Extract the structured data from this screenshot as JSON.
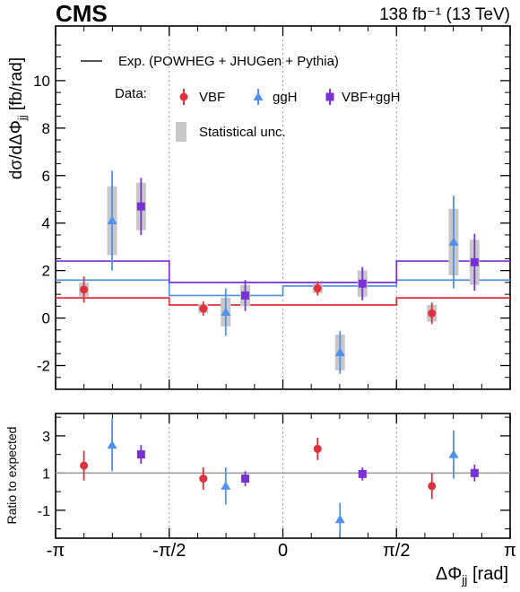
{
  "header": {
    "experiment": "CMS",
    "luminosity": "138 fb⁻¹ (13 TeV)"
  },
  "legend": {
    "expected": "Exp. (POWHEG + JHUGen + Pythia)",
    "data_prefix": "Data:",
    "vbf": "VBF",
    "ggh": "ggH",
    "vbf_ggh": "VBF+ggH",
    "stat": "Statistical unc."
  },
  "colors": {
    "VBF": "#e0303a",
    "ggH": "#4f92ee",
    "VBF+ggH": "#7a2fd8",
    "stat_band": "#c8c8c8",
    "reference": "#999999"
  },
  "chart_data": [
    {
      "type": "scatter",
      "panel": "main",
      "ylabel": "dσ/dΔΦjj [fb/rad]",
      "ylim": [
        -3,
        12.3
      ],
      "yticks": [
        -2,
        0,
        2,
        4,
        6,
        8,
        10
      ],
      "ytick_labels": [
        "-2",
        "0",
        "2",
        "4",
        "6",
        "8",
        "10"
      ],
      "x_bins": [
        [
          "-π",
          "-π/2"
        ],
        [
          "-π/2",
          "0"
        ],
        [
          "0",
          "π/2"
        ],
        [
          "π/2",
          "π"
        ]
      ],
      "expected": {
        "VBF": [
          0.85,
          0.55,
          0.55,
          0.85
        ],
        "ggH": [
          1.6,
          0.95,
          1.35,
          1.6
        ],
        "VBF+ggH": [
          2.4,
          1.5,
          1.5,
          2.4
        ]
      },
      "series": [
        {
          "name": "VBF",
          "marker": "circle",
          "points": [
            {
              "x": -2.75,
              "y": 1.2,
              "err": 0.55,
              "stat": 0.3
            },
            {
              "x": -1.1,
              "y": 0.4,
              "err": 0.3,
              "stat": 0.2
            },
            {
              "x": 0.48,
              "y": 1.25,
              "err": 0.3,
              "stat": 0.2
            },
            {
              "x": 2.06,
              "y": 0.2,
              "err": 0.45,
              "stat": 0.35
            }
          ]
        },
        {
          "name": "ggH",
          "marker": "triangle",
          "points": [
            {
              "x": -2.36,
              "y": 4.1,
              "err": 2.1,
              "stat": 1.45
            },
            {
              "x": -0.79,
              "y": 0.25,
              "err": 1.0,
              "stat": 0.6
            },
            {
              "x": 0.79,
              "y": -1.45,
              "err": 0.9,
              "stat": 0.75
            },
            {
              "x": 2.36,
              "y": 3.2,
              "err": 1.95,
              "stat": 1.4
            }
          ]
        },
        {
          "name": "VBF+ggH",
          "marker": "square",
          "points": [
            {
              "x": -1.96,
              "y": 4.7,
              "err": 1.2,
              "stat": 1.0
            },
            {
              "x": -0.52,
              "y": 0.95,
              "err": 0.65,
              "stat": 0.45
            },
            {
              "x": 1.1,
              "y": 1.45,
              "err": 0.7,
              "stat": 0.55
            },
            {
              "x": 2.65,
              "y": 2.35,
              "err": 1.2,
              "stat": 0.95
            }
          ]
        }
      ]
    },
    {
      "type": "scatter",
      "panel": "ratio",
      "ylabel": "Ratio to expected",
      "xlabel": "ΔΦjj [rad]",
      "ylim": [
        -2.5,
        4.2
      ],
      "yticks": [
        -1,
        1,
        3
      ],
      "ytick_labels": [
        "-1",
        "1",
        "3"
      ],
      "xlim": [
        -3.1416,
        3.1416
      ],
      "xticks": [
        -3.1416,
        -1.5708,
        0,
        1.5708,
        3.1416
      ],
      "xtick_labels": [
        "-π",
        "-π/2",
        "0",
        "π/2",
        "π"
      ],
      "reference": 1,
      "series": [
        {
          "name": "VBF",
          "marker": "circle",
          "points": [
            {
              "x": -2.75,
              "y": 1.4,
              "err": 0.8
            },
            {
              "x": -1.1,
              "y": 0.7,
              "err": 0.6
            },
            {
              "x": 0.48,
              "y": 2.3,
              "err": 0.6
            },
            {
              "x": 2.06,
              "y": 0.3,
              "err": 0.7
            }
          ]
        },
        {
          "name": "ggH",
          "marker": "triangle",
          "points": [
            {
              "x": -2.36,
              "y": 2.5,
              "err": 1.4
            },
            {
              "x": -0.79,
              "y": 0.3,
              "err": 1.0
            },
            {
              "x": 0.79,
              "y": -1.5,
              "err": 0.9
            },
            {
              "x": 2.36,
              "y": 2.0,
              "err": 1.3
            }
          ]
        },
        {
          "name": "VBF+ggH",
          "marker": "square",
          "points": [
            {
              "x": -1.96,
              "y": 2.0,
              "err": 0.5
            },
            {
              "x": -0.52,
              "y": 0.7,
              "err": 0.4
            },
            {
              "x": 1.1,
              "y": 0.95,
              "err": 0.35
            },
            {
              "x": 2.65,
              "y": 1.0,
              "err": 0.45
            }
          ]
        }
      ]
    }
  ]
}
